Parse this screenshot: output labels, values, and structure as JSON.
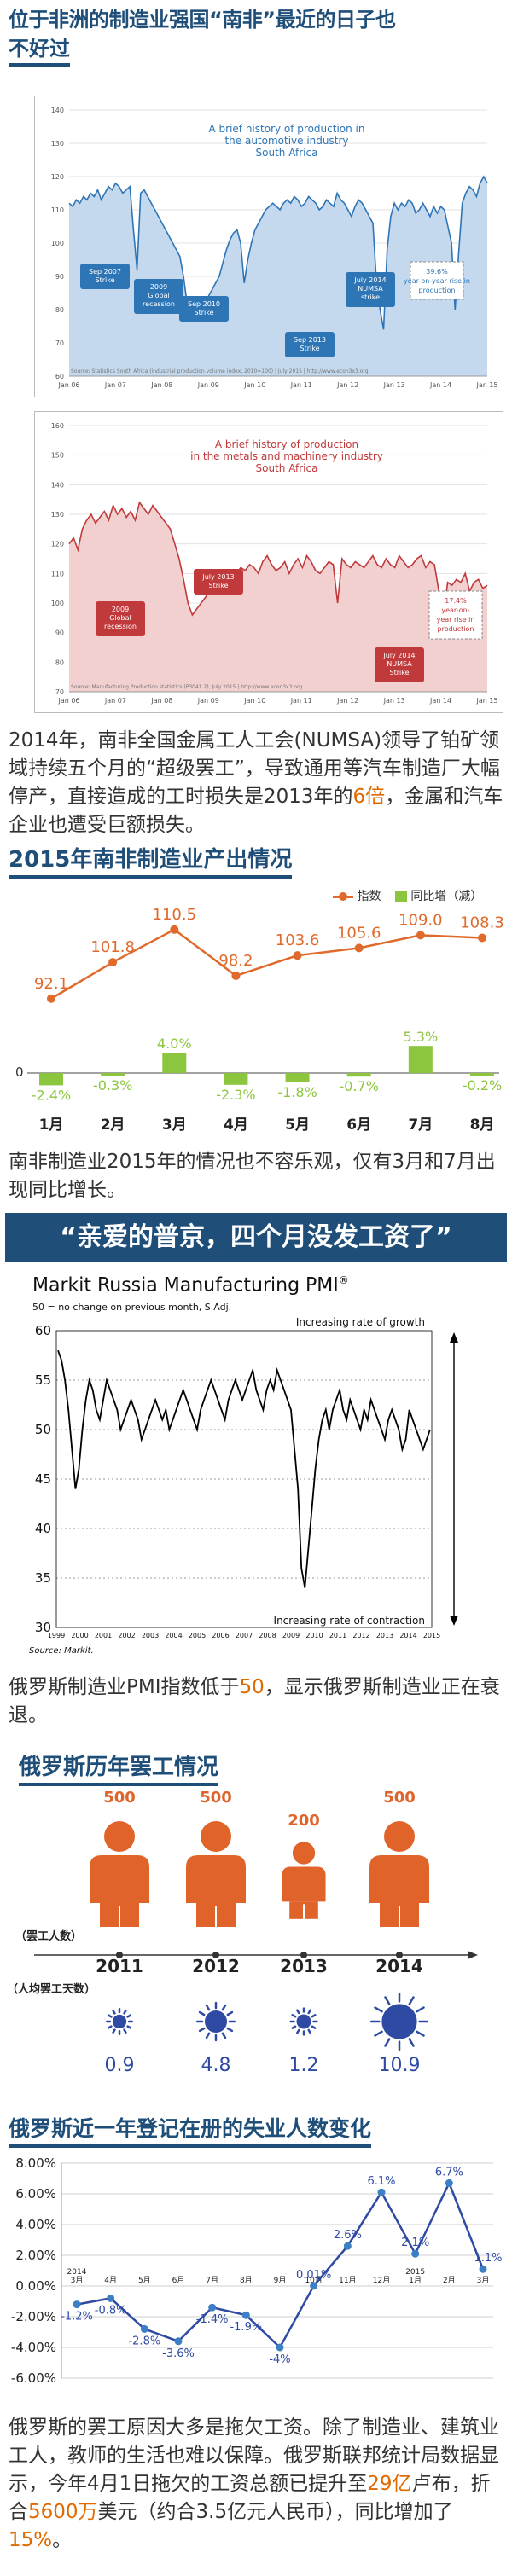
{
  "title": {
    "line1": "位于非洲的制造业强国“南非”最近的日子也",
    "line2": "不好过"
  },
  "sa_auto_chart": {
    "type": "line",
    "annotation": [
      "A brief history of production in",
      "the automotive industry",
      "South Africa"
    ],
    "ylim": [
      60,
      140
    ],
    "y_ticks": [
      "140",
      "130",
      "120",
      "110",
      "100",
      "90",
      "80",
      "70",
      "60"
    ],
    "x_ticks": [
      "Jan 06",
      "Jan 07",
      "Jan 08",
      "Jan 09",
      "Jan 10",
      "Jan 11",
      "Jan 12",
      "Jan 13",
      "Jan 14",
      "Jan 15"
    ],
    "callouts": [
      {
        "label": "Sep 2007\nStrike"
      },
      {
        "label": "2009\nGlobal\nrecession"
      },
      {
        "label": "Sep 2010\nStrike"
      },
      {
        "label": "Sep 2013\nStrike"
      },
      {
        "label": "July 2014\nNUMSA\nstrike"
      }
    ],
    "yoy_box": "39.6%\nyear-on-year rise in\nproduction",
    "source": "Source: Statistics South Africa (industrial production volume index, 2010=100) | July 2015 | http://www.econ3x3.org",
    "color": "#2e75b6",
    "fill": "#c5d9ee",
    "values": [
      112,
      111,
      113,
      112,
      114,
      113,
      115,
      114,
      116,
      113,
      115,
      117,
      116,
      118,
      117,
      115,
      116,
      117,
      104,
      92,
      115,
      116,
      114,
      112,
      110,
      108,
      106,
      104,
      102,
      100,
      98,
      96,
      90,
      82,
      80,
      79,
      78,
      80,
      82,
      84,
      86,
      88,
      90,
      94,
      98,
      101,
      103,
      104,
      100,
      88,
      95,
      100,
      104,
      106,
      108,
      110,
      111,
      112,
      111,
      110,
      112,
      113,
      112,
      114,
      113,
      111,
      112,
      114,
      113,
      112,
      110,
      111,
      113,
      112,
      111,
      115,
      113,
      112,
      110,
      108,
      111,
      113,
      112,
      110,
      108,
      106,
      88,
      80,
      74,
      98,
      108,
      112,
      110,
      112,
      111,
      113,
      112,
      109,
      110,
      112,
      110,
      108,
      111,
      109,
      111,
      110,
      105,
      100,
      80,
      97,
      112,
      115,
      117,
      116,
      114,
      118,
      120,
      118
    ]
  },
  "sa_metals_chart": {
    "type": "line",
    "annotation": [
      "A brief history of production",
      "in the metals and machinery industry",
      "South Africa"
    ],
    "ylim": [
      70,
      160
    ],
    "y_ticks": [
      "160",
      "150",
      "140",
      "130",
      "120",
      "110",
      "100",
      "90",
      "80",
      "70"
    ],
    "x_ticks": [
      "Jan 06",
      "Jan 07",
      "Jan 08",
      "Jan 09",
      "Jan 10",
      "Jan 11",
      "Jan 12",
      "Jan 13",
      "Jan 14",
      "Jan 15"
    ],
    "callouts": [
      {
        "label": "2009\nGlobal\nrecession"
      },
      {
        "label": "July 2013\nStrike"
      },
      {
        "label": "July 2014\nNUMSA\nStrike"
      }
    ],
    "yoy_box": "17.4%\nyear-on-\nyear rise in\nproduction",
    "source": "Source: Manufacturing Production statistics (P3041.2), July 2015 | http://www.econ3x3.org",
    "color": "#c0393b",
    "fill": "#f3d0d0",
    "values": [
      120,
      122,
      118,
      125,
      128,
      130,
      127,
      129,
      131,
      128,
      133,
      130,
      132,
      129,
      131,
      128,
      134,
      132,
      130,
      133,
      131,
      129,
      127,
      125,
      120,
      115,
      108,
      100,
      96,
      98,
      100,
      102,
      104,
      106,
      108,
      110,
      109,
      111,
      110,
      112,
      111,
      113,
      112,
      110,
      114,
      116,
      113,
      111,
      112,
      114,
      110,
      113,
      115,
      112,
      116,
      114,
      111,
      110,
      112,
      114,
      113,
      100,
      115,
      113,
      112,
      114,
      113,
      112,
      114,
      116,
      113,
      112,
      115,
      113,
      112,
      116,
      114,
      112,
      113,
      115,
      116,
      112,
      114,
      113,
      104,
      95,
      107,
      106,
      108,
      107,
      110,
      104,
      107,
      108,
      105,
      106
    ]
  },
  "para1": {
    "a": "2014年，南非全国金属工人工会(NUMSA)领导了铂矿领域持续五个月的“超级罢工”，导致通用等汽车制造厂大幅停产，直接造成的工时损失是2013年的",
    "hl": "6倍",
    "b": "，金属和汽车企业也遭受巨额损失。"
  },
  "sa2015": {
    "heading": "2015年南非制造业产出情况",
    "legend_index": "指数",
    "legend_yoy": "同比增（减）",
    "chart_data": {
      "type": "line",
      "categories": [
        "1月",
        "2月",
        "3月",
        "4月",
        "5月",
        "6月",
        "7月",
        "8月"
      ],
      "series": [
        {
          "name": "指数",
          "values": [
            92.1,
            101.8,
            110.5,
            98.2,
            103.6,
            105.6,
            109.0,
            108.3
          ],
          "labels": [
            "92.1",
            "101.8",
            "110.5",
            "98.2",
            "103.6",
            "105.6",
            "109.0",
            "108.3"
          ]
        },
        {
          "name": "同比增（减）",
          "values": [
            -2.4,
            -0.3,
            4.0,
            -2.3,
            -1.8,
            -0.7,
            5.3,
            -0.2
          ],
          "labels": [
            "-2.4%",
            "-0.3%",
            "4.0%",
            "-2.3%",
            "-1.8%",
            "-0.7%",
            "5.3%",
            "-0.2%"
          ]
        }
      ],
      "zero_label": "0",
      "line_color": "#e06a2b",
      "bar_color": "#8cc63f"
    }
  },
  "para2": "南非制造业2015年的情况也不容乐观，仅有3月和7月出现同比增长。",
  "quote_bar": "“亲爱的普京，四个月没发工资了”",
  "russia_pmi": {
    "title": "Markit Russia Manufacturing PMI",
    "title_sup": "®",
    "subtitle": "50 = no change on previous month, S.Adj.",
    "top_note": "Increasing rate of growth",
    "bottom_note": "Increasing rate of contraction",
    "source": "Source: Markit.",
    "y_ticks": [
      "60",
      "55",
      "50",
      "45",
      "40",
      "35",
      "30"
    ],
    "ylim": [
      30,
      60
    ],
    "x_ticks": [
      "1999",
      "2000",
      "2001",
      "2002",
      "2003",
      "2004",
      "2005",
      "2006",
      "2007",
      "2008",
      "2009",
      "2010",
      "2011",
      "2012",
      "2013",
      "2014",
      "2015"
    ],
    "values": [
      58,
      57,
      55,
      52,
      48,
      44,
      46,
      50,
      53,
      55,
      54,
      52,
      51,
      53,
      55,
      54,
      53,
      52,
      50,
      51,
      52,
      53,
      52,
      51,
      49,
      50,
      51,
      52,
      53,
      52,
      51,
      52,
      50,
      51,
      52,
      53,
      54,
      53,
      52,
      51,
      50,
      52,
      53,
      54,
      55,
      54,
      53,
      52,
      51,
      53,
      54,
      55,
      54,
      53,
      54,
      55,
      56,
      54,
      53,
      52,
      54,
      55,
      54,
      56,
      55,
      54,
      53,
      52,
      48,
      44,
      36,
      34,
      38,
      42,
      46,
      49,
      51,
      52,
      50,
      52,
      53,
      54,
      52,
      51,
      53,
      52,
      51,
      50,
      52,
      51,
      53,
      52,
      51,
      50,
      49,
      51,
      52,
      51,
      50,
      48,
      49,
      52,
      51,
      50,
      49,
      48,
      49,
      50
    ]
  },
  "para3": {
    "a": "俄罗斯制造业PMI指数低于",
    "hl": "50",
    "b": "，显示俄罗斯制造业正在衰退。"
  },
  "strikes": {
    "heading": "俄罗斯历年罢工情况",
    "row1_label": "罢工人数",
    "row2_label": "人均罢工天数",
    "years": [
      "2011",
      "2012",
      "2013",
      "2014"
    ],
    "counts": [
      "500",
      "500",
      "200",
      "500"
    ],
    "count_values": [
      500,
      500,
      200,
      500
    ],
    "days": [
      "0.9",
      "4.8",
      "1.2",
      "10.9"
    ],
    "day_values": [
      0.9,
      4.8,
      1.2,
      10.9
    ],
    "person_color": "#e0642a",
    "sun_color": "#2e4aa3"
  },
  "unemp": {
    "heading": "俄罗斯近一年登记在册的失业人数变化",
    "chart_data": {
      "type": "line",
      "y_ticks": [
        "8.00%",
        "6.00%",
        "4.00%",
        "2.00%",
        "0.00%",
        "-2.00%",
        "-4.00%",
        "-6.00%"
      ],
      "ylim": [
        -6,
        8
      ],
      "x_labels": [
        "2014\n3月",
        "4月",
        "5月",
        "6月",
        "7月",
        "8月",
        "9月",
        "10月",
        "11月",
        "12月",
        "2015\n1月",
        "2月",
        "3月"
      ],
      "values": [
        -1.2,
        -0.8,
        -2.8,
        -3.6,
        -1.4,
        -1.9,
        -4.0,
        0.01,
        2.6,
        6.1,
        2.1,
        6.7,
        1.1
      ],
      "labels": [
        "-1.2%",
        "-0.8%",
        "-2.8%",
        "-3.6%",
        "-1.4%",
        "-1.9%",
        "-4%",
        "0.01%",
        "2.6%",
        "6.1%",
        "2.1%",
        "6.7%",
        "1.1%"
      ],
      "line_color": "#2e4aa3",
      "point_color": "#3c7fc4"
    }
  },
  "para4": {
    "a": "俄罗斯的罢工原因大多是拖欠工资。除了制造业、建筑业工人，教师的生活也难以保障。俄罗斯联邦统计局数据显示，今年4月1日拖欠的工资总额已提升至",
    "hl1": "29亿",
    "b": "卢布，折合",
    "hl2": "5600万",
    "c": "美元（约合3.5亿元人民币），同比增加了",
    "hl3": "15%",
    "d": "。"
  }
}
